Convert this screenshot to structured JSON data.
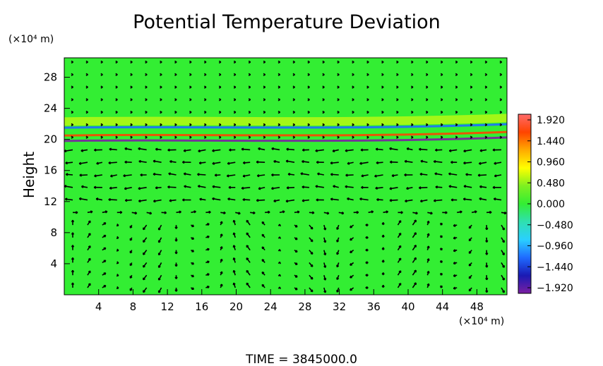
{
  "chart_data": {
    "type": "heatmap",
    "title": "Potential Temperature Deviation",
    "ylabel": "Height",
    "y_unit": "(×10⁴ m)",
    "x_unit": "(×10⁴ m)",
    "x_ticks": [
      4,
      8,
      12,
      16,
      20,
      24,
      28,
      32,
      36,
      40,
      44,
      48
    ],
    "y_ticks": [
      4,
      8,
      12,
      16,
      20,
      24,
      28
    ],
    "xlim": [
      0,
      51.5
    ],
    "ylim": [
      0,
      30.5
    ],
    "colorbar": {
      "ticks": [
        "1.920",
        "1.440",
        "0.960",
        "0.480",
        "0.000",
        "−0.480",
        "−0.960",
        "−1.440",
        "−1.920"
      ],
      "range": [
        -2.05,
        2.05
      ],
      "colors": [
        "#7b1fa2",
        "#1a1ab4",
        "#1f6bff",
        "#2ad0ff",
        "#2fe0b0",
        "#33ee33",
        "#7ef020",
        "#ffff00",
        "#ffaa00",
        "#ff4400",
        "#ff6a6a"
      ]
    },
    "background_color": "#33ee33",
    "overlay": "wind vector arrows",
    "bands": [
      {
        "y": 13.8,
        "value": 0.15
      },
      {
        "y": 17.2,
        "value": 0.2
      },
      {
        "y": 19.8,
        "value": -1.9
      },
      {
        "y": 20.5,
        "value": 1.5
      },
      {
        "y": 21.5,
        "value": -1.2
      },
      {
        "y": 22.3,
        "value": 0.9
      }
    ],
    "time_label": "TIME = 3845000.0"
  }
}
